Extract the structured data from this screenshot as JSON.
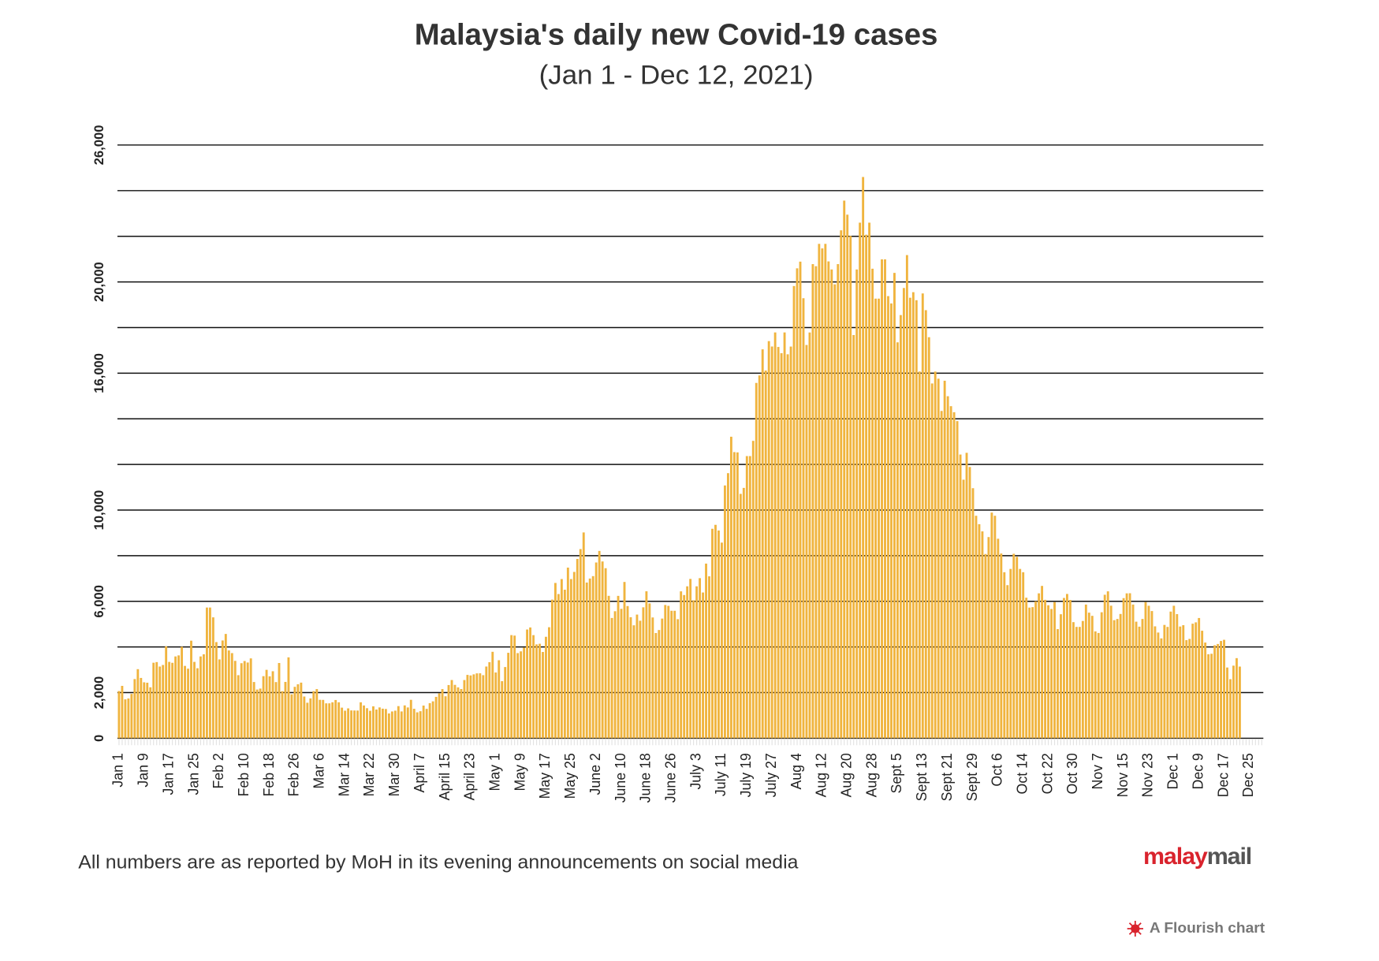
{
  "chart_data": {
    "type": "bar",
    "title": "Malaysia's daily new Covid-19 cases",
    "subtitle": "(Jan 1 - Dec 12, 2021)",
    "footnote": "All numbers are as reported by MoH in its evening announcements on social media",
    "logo": [
      "malay",
      "mail"
    ],
    "credit": "A Flourish chart",
    "color": "#f0b43e",
    "grid": true,
    "ylim": [
      0,
      26000
    ],
    "ygrid": [
      0,
      2000,
      4000,
      6000,
      8000,
      10000,
      12000,
      14000,
      16000,
      18000,
      20000,
      22000,
      24000,
      26000
    ],
    "yticks": [
      0,
      {
        "value": 2000,
        "label": "2,000"
      },
      {
        "value": 6000,
        "label": "6,000"
      },
      {
        "value": 10000,
        "label": "10,000"
      },
      {
        "value": 16000,
        "label": "16,000"
      },
      {
        "value": 20000,
        "label": "20,000"
      },
      {
        "value": 26000,
        "label": "26,000"
      }
    ],
    "categories": [
      "Jan 1",
      null,
      null,
      null,
      null,
      null,
      null,
      null,
      "Jan 9",
      null,
      null,
      null,
      null,
      null,
      null,
      null,
      "Jan 17",
      null,
      null,
      null,
      null,
      null,
      null,
      null,
      "Jan 25",
      null,
      null,
      null,
      null,
      null,
      null,
      null,
      "Feb 2",
      null,
      null,
      null,
      null,
      null,
      null,
      null,
      "Feb 10",
      null,
      null,
      null,
      null,
      null,
      null,
      null,
      "Feb 18",
      null,
      null,
      null,
      null,
      null,
      null,
      null,
      "Feb 26",
      null,
      null,
      null,
      null,
      null,
      null,
      null,
      "Mar 6",
      null,
      null,
      null,
      null,
      null,
      null,
      null,
      "Mar 14",
      null,
      null,
      null,
      null,
      null,
      null,
      null,
      "Mar 22",
      null,
      null,
      null,
      null,
      null,
      null,
      null,
      "Mar 30",
      null,
      null,
      null,
      null,
      null,
      null,
      null,
      "April 7",
      null,
      null,
      null,
      null,
      null,
      null,
      null,
      "April 15",
      null,
      null,
      null,
      null,
      null,
      null,
      null,
      "April 23",
      null,
      null,
      null,
      null,
      null,
      null,
      null,
      "May 1",
      null,
      null,
      null,
      null,
      null,
      null,
      null,
      "May 9",
      null,
      null,
      null,
      null,
      null,
      null,
      null,
      "May 17",
      null,
      null,
      null,
      null,
      null,
      null,
      null,
      "May 25",
      null,
      null,
      null,
      null,
      null,
      null,
      null,
      "June 2",
      null,
      null,
      null,
      null,
      null,
      null,
      null,
      "June 10",
      null,
      null,
      null,
      null,
      null,
      null,
      null,
      "June 18",
      null,
      null,
      null,
      null,
      null,
      null,
      null,
      "June 26",
      null,
      null,
      null,
      null,
      null,
      null,
      null,
      "July 3",
      null,
      null,
      null,
      null,
      null,
      null,
      null,
      "July 11",
      null,
      null,
      null,
      null,
      null,
      null,
      null,
      "July 19",
      null,
      null,
      null,
      null,
      null,
      null,
      null,
      "July 27",
      null,
      null,
      null,
      null,
      null,
      null,
      null,
      "Aug 4",
      null,
      null,
      null,
      null,
      null,
      null,
      null,
      "Aug 12",
      null,
      null,
      null,
      null,
      null,
      null,
      null,
      "Aug 20",
      null,
      null,
      null,
      null,
      null,
      null,
      null,
      "Aug 28",
      null,
      null,
      null,
      null,
      null,
      null,
      null,
      "Sept 5",
      null,
      null,
      null,
      null,
      null,
      null,
      null,
      "Sept 13",
      null,
      null,
      null,
      null,
      null,
      null,
      null,
      "Sept 21",
      null,
      null,
      null,
      null,
      null,
      null,
      null,
      "Sept 29",
      null,
      null,
      null,
      null,
      null,
      null,
      null,
      "Oct 6",
      null,
      null,
      null,
      null,
      null,
      null,
      null,
      "Oct 14",
      null,
      null,
      null,
      null,
      null,
      null,
      null,
      "Oct 22",
      null,
      null,
      null,
      null,
      null,
      null,
      null,
      "Oct 30",
      null,
      null,
      null,
      null,
      null,
      null,
      null,
      "Nov 7",
      null,
      null,
      null,
      null,
      null,
      null,
      null,
      "Nov 15",
      null,
      null,
      null,
      null,
      null,
      null,
      null,
      "Nov 23",
      null,
      null,
      null,
      null,
      null,
      null,
      null,
      "Dec 1",
      null,
      null,
      null,
      null,
      null,
      null,
      null,
      "Dec 9",
      null,
      null,
      null,
      null,
      null,
      null,
      null,
      "Dec 17",
      null,
      null,
      null,
      null,
      null,
      null,
      null,
      "Dec 25",
      null,
      null,
      null,
      null
    ],
    "values": [
      2068,
      2295,
      1704,
      1741,
      1943,
      2593,
      3027,
      2643,
      2451,
      2433,
      2232,
      3309,
      3337,
      3142,
      3211,
      4029,
      3346,
      3306,
      3585,
      3631,
      4008,
      3170,
      3048,
      4275,
      3346,
      3068,
      3585,
      3680,
      5728,
      5728,
      5298,
      4214,
      3455,
      4284,
      4571,
      3847,
      3731,
      3391,
      2764,
      3288,
      3384,
      3318,
      3499,
      2464,
      2134,
      2176,
      2720,
      2998,
      2712,
      2936,
      2461,
      3297,
      2063,
      2468,
      3545,
      1924,
      2253,
      2364,
      2437,
      1828,
      1555,
      1745,
      2063,
      2154,
      1683,
      1680,
      1529,
      1529,
      1575,
      1675,
      1575,
      1340,
      1208,
      1309,
      1219,
      1215,
      1213,
      1575,
      1436,
      1316,
      1203,
      1398,
      1259,
      1350,
      1295,
      1281,
      1085,
      1173,
      1208,
      1407,
      1174,
      1439,
      1349,
      1683,
      1291,
      1135,
      1184,
      1432,
      1287,
      1538,
      1616,
      1813,
      1967,
      2154,
      1838,
      2331,
      2551,
      2340,
      2228,
      2157,
      2550,
      2776,
      2752,
      2800,
      2843,
      2846,
      2764,
      3142,
      3332,
      3788,
      2881,
      3418,
      2500,
      3120,
      3744,
      4519,
      4498,
      3731,
      3807,
      3973,
      4765,
      4855,
      4519,
      4113,
      4140,
      3780,
      4446,
      4865,
      6075,
      6806,
      6320,
      6976,
      6509,
      7478,
      6977,
      7289,
      7857,
      8290,
      9020,
      6824,
      6999,
      7105,
      7703,
      8209,
      7748,
      7452,
      6241,
      5271,
      5566,
      6239,
      5671,
      6849,
      5793,
      5304,
      4949,
      5419,
      5150,
      5738,
      6440,
      5911,
      5293,
      4611,
      4743,
      5244,
      5841,
      5803,
      5586,
      5586,
      5218,
      6437,
      6276,
      6658,
      6982,
      6045,
      6658,
      7016,
      6387,
      7654,
      7097,
      9180,
      9353,
      9105,
      8574,
      11079,
      11618,
      13215,
      12541,
      12528,
      10710,
      10972,
      12366,
      12366,
      13034,
      15573,
      15902,
      17045,
      16117,
      17405,
      17170,
      17786,
      17150,
      16875,
      17786,
      16828,
      17167,
      19819,
      20596,
      20889,
      19286,
      17236,
      17784,
      20780,
      20689,
      21668,
      21468,
      21668,
      20899,
      20546,
      19893,
      20780,
      22262,
      23564,
      22948,
      22017,
      17672,
      20546,
      22597,
      24599,
      22070,
      22597,
      20579,
      19268,
      19268,
      20988,
      20988,
      19378,
      19057,
      20396,
      17352,
      18547,
      19733,
      21176,
      19307,
      19550,
      19198,
      16073,
      19495,
      18762,
      17577,
      15549,
      16070,
      15759,
      14345,
      15669,
      14990,
      14554,
      14290,
      13899,
      12434,
      11332,
      12510,
      11889,
      10959,
      9751,
      9380,
      9066,
      8075,
      8817,
      9890,
      9751,
      8743,
      8095,
      7276,
      6709,
      7420,
      8084,
      7950,
      7420,
      7276,
      6159,
      5725,
      5745,
      6003,
      6351,
      6676,
      6065,
      5828,
      5666,
      5966,
      4782,
      5434,
      6148,
      6323,
      6060,
      5088,
      4879,
      4879,
      5139,
      5859,
      5504,
      5364,
      4683,
      4613,
      5522,
      6288,
      6438,
      5809,
      5175,
      5227,
      5446,
      6140,
      6350,
      6355,
      5859,
      5108,
      4890,
      5227,
      5967,
      5806,
      5574,
      4904,
      4632,
      4376,
      4966,
      4879,
      5551,
      5806,
      5439,
      4896,
      4954,
      4298,
      4353,
      5020,
      5079,
      5269,
      4711,
      4193,
      3682,
      3702,
      4075,
      4130,
      4262,
      4314,
      3100,
      2589,
      3181,
      3510,
      3140,
      null,
      null,
      null,
      null,
      null,
      null,
      null
    ]
  }
}
